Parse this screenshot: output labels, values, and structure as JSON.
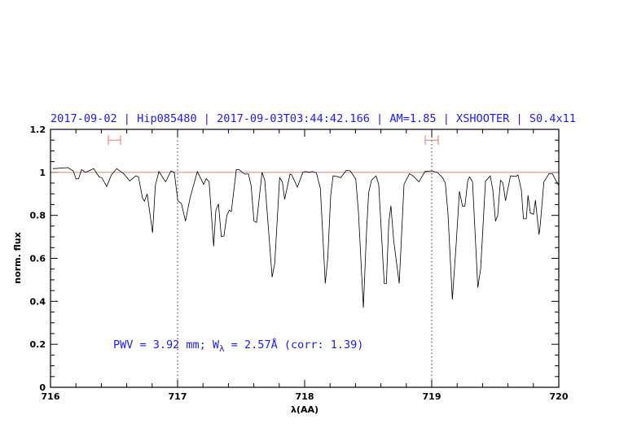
{
  "chart_data": {
    "type": "line",
    "title": "2017-09-02 | Hip085480 | 2017-09-03T03:44:42.166 | AM=1.85 | XSHOOTER | S0.4x11",
    "xlabel": "λ(AA)",
    "ylabel": "norm. flux",
    "xlim": [
      716,
      720
    ],
    "ylim": [
      0,
      1.2
    ],
    "xticks": [
      "716",
      "717",
      "718",
      "719",
      "720"
    ],
    "yticks": [
      "0",
      "0.2",
      "0.4",
      "0.6",
      "0.8",
      "1",
      "1.2"
    ],
    "grid": false,
    "reference_line": {
      "y": 1,
      "color": "#e07a7a"
    },
    "vertical_markers": [
      717,
      719
    ],
    "ranges": [
      {
        "from": 716.455,
        "to": 716.551,
        "y": 1.15,
        "color": "#f07070"
      },
      {
        "from": 718.949,
        "to": 719.051,
        "y": 1.15,
        "color": "#f07070"
      }
    ],
    "annotation": {
      "pre": "PWV = 3.92 mm; W",
      "sub": "λ",
      "post": " = 2.57Å (corr: 1.39)",
      "color": "#1a1aff"
    },
    "series": [
      {
        "color": "#000000",
        "x": [
          716.019,
          716.137,
          716.179,
          716.201,
          716.222,
          716.244,
          716.276,
          716.308,
          716.34,
          716.383,
          716.404,
          716.442,
          716.479,
          716.521,
          716.575,
          716.624,
          716.671,
          716.692,
          716.724,
          716.739,
          716.761,
          716.803,
          716.825,
          716.853,
          716.906,
          716.949,
          716.974,
          717.002,
          717.03,
          717.062,
          717.098,
          717.156,
          717.205,
          717.226,
          717.248,
          717.284,
          717.301,
          717.322,
          717.344,
          717.365,
          717.387,
          717.408,
          717.423,
          717.462,
          717.483,
          717.526,
          717.558,
          717.579,
          717.601,
          717.622,
          717.665,
          717.686,
          717.744,
          717.765,
          717.803,
          717.825,
          717.842,
          717.885,
          717.899,
          717.942,
          717.985,
          718.006,
          718.038,
          718.06,
          718.092,
          718.124,
          718.162,
          718.182,
          718.205,
          718.224,
          718.252,
          718.284,
          718.327,
          718.359,
          718.402,
          718.423,
          718.462,
          718.487,
          718.504,
          718.526,
          718.562,
          718.583,
          718.626,
          718.643,
          718.662,
          718.679,
          718.701,
          718.744,
          718.782,
          718.825,
          718.851,
          718.9,
          718.947,
          719.0,
          719.043,
          719.085,
          719.107,
          719.128,
          719.162,
          719.192,
          719.218,
          719.242,
          719.261,
          719.284,
          719.299,
          719.321,
          719.363,
          719.385,
          719.423,
          719.46,
          719.481,
          719.502,
          719.519,
          719.541,
          719.56,
          719.581,
          719.62,
          719.662,
          719.679,
          719.705,
          719.722,
          719.744,
          719.758,
          719.776,
          719.801,
          719.816,
          719.844,
          719.854,
          719.883,
          719.923,
          719.951,
          719.983,
          720.0
        ],
        "y": [
          1.017,
          1.022,
          1.007,
          0.969,
          0.971,
          1.013,
          1.0,
          1.009,
          1.017,
          0.979,
          0.975,
          0.934,
          0.988,
          1.017,
          0.994,
          0.96,
          0.984,
          0.979,
          0.881,
          0.866,
          0.9,
          0.719,
          0.938,
          1.004,
          0.956,
          1.007,
          1.0,
          0.868,
          0.855,
          0.773,
          0.881,
          1.004,
          0.944,
          0.971,
          0.956,
          0.656,
          0.824,
          0.853,
          0.701,
          0.704,
          0.799,
          0.824,
          0.818,
          1.013,
          1.013,
          0.992,
          0.992,
          0.938,
          0.773,
          0.767,
          1.0,
          0.963,
          0.512,
          0.578,
          0.975,
          0.956,
          0.874,
          0.992,
          0.988,
          0.931,
          1.0,
          1.004,
          1.0,
          1.004,
          0.998,
          0.925,
          0.483,
          0.603,
          0.893,
          0.984,
          0.981,
          0.975,
          1.009,
          1.007,
          0.969,
          0.818,
          0.37,
          0.729,
          0.906,
          0.963,
          0.984,
          0.944,
          0.483,
          0.483,
          0.767,
          0.845,
          0.679,
          0.483,
          0.944,
          0.994,
          0.984,
          0.956,
          1.004,
          1.007,
          1.0,
          0.975,
          0.95,
          0.805,
          0.408,
          0.666,
          0.912,
          0.843,
          0.843,
          0.963,
          0.979,
          0.956,
          0.464,
          0.553,
          0.959,
          0.984,
          0.919,
          0.773,
          0.799,
          0.963,
          0.95,
          0.868,
          0.984,
          0.981,
          0.988,
          0.919,
          0.784,
          0.784,
          0.893,
          0.811,
          0.805,
          0.871,
          0.71,
          0.754,
          0.956,
          0.994,
          0.992,
          0.956,
          0.938
        ]
      }
    ]
  }
}
